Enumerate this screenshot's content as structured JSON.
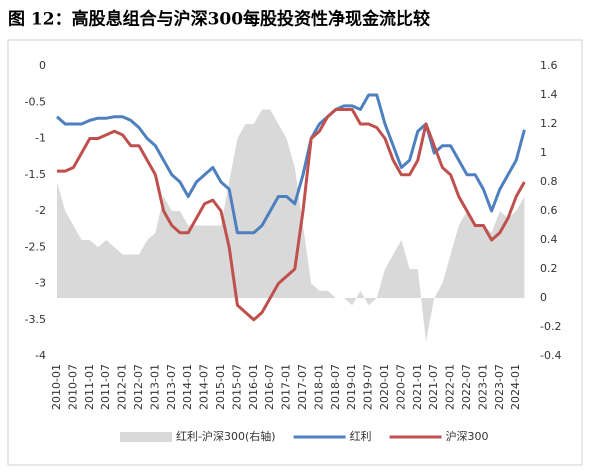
{
  "chart_data": {
    "type": "line",
    "title": "图 12：高股息组合与沪深300每股投资性净现金流比较",
    "categories": [
      "2010-01",
      null,
      "2010-07",
      null,
      "2011-01",
      null,
      "2011-07",
      null,
      "2012-01",
      null,
      "2012-07",
      null,
      "2013-01",
      null,
      "2013-07",
      null,
      "2014-01",
      null,
      "2014-07",
      null,
      "2015-01",
      null,
      "2015-07",
      null,
      "2016-01",
      null,
      "2016-07",
      null,
      "2017-01",
      null,
      "2017-07",
      null,
      "2018-01",
      null,
      "2018-07",
      null,
      "2019-01",
      null,
      "2019-07",
      null,
      "2020-01",
      null,
      "2020-07",
      null,
      "2021-01",
      null,
      "2021-07",
      null,
      "2022-01",
      null,
      "2022-07",
      null,
      "2023-01",
      null,
      "2023-07",
      null,
      "2024-01",
      null
    ],
    "series": [
      {
        "name": "红利-沪深300(右轴)",
        "color": "#d9d9d9",
        "axis": "y2",
        "kind": "area",
        "values": [
          0.8,
          0.6,
          0.5,
          0.4,
          0.4,
          0.35,
          0.4,
          0.35,
          0.3,
          0.3,
          0.3,
          0.4,
          0.45,
          0.7,
          0.6,
          0.6,
          0.5,
          0.5,
          0.5,
          0.5,
          0.5,
          0.8,
          1.1,
          1.2,
          1.2,
          1.3,
          1.3,
          1.2,
          1.1,
          0.9,
          0.5,
          0.1,
          0.05,
          0.05,
          0.0,
          0.0,
          -0.05,
          0.05,
          -0.05,
          0.0,
          0.2,
          0.3,
          0.4,
          0.2,
          0.2,
          -0.3,
          0.0,
          0.1,
          0.3,
          0.5,
          0.6,
          0.5,
          0.5,
          0.45,
          0.6,
          0.55,
          0.6,
          0.7
        ]
      },
      {
        "name": "红利",
        "color": "#4e7fbf",
        "values": [
          -0.7,
          -0.8,
          -0.8,
          -0.8,
          -0.75,
          -0.72,
          -0.72,
          -0.7,
          -0.7,
          -0.75,
          -0.85,
          -1.0,
          -1.1,
          -1.3,
          -1.5,
          -1.6,
          -1.8,
          -1.6,
          -1.5,
          -1.4,
          -1.6,
          -1.7,
          -2.3,
          -2.3,
          -2.3,
          -2.2,
          -2.0,
          -1.8,
          -1.8,
          -1.9,
          -1.5,
          -1.0,
          -0.8,
          -0.7,
          -0.6,
          -0.55,
          -0.55,
          -0.6,
          -0.4,
          -0.4,
          -0.8,
          -1.1,
          -1.4,
          -1.3,
          -0.9,
          -0.8,
          -1.2,
          -1.1,
          -1.1,
          -1.3,
          -1.5,
          -1.5,
          -1.7,
          -2.0,
          -1.7,
          -1.5,
          -1.3,
          -0.88
        ]
      },
      {
        "name": "沪深300",
        "color": "#c0504d",
        "values": [
          -1.45,
          -1.45,
          -1.4,
          -1.2,
          -1.0,
          -1.0,
          -0.95,
          -0.9,
          -0.95,
          -1.1,
          -1.1,
          -1.3,
          -1.5,
          -2.0,
          -2.2,
          -2.3,
          -2.3,
          -2.1,
          -1.9,
          -1.85,
          -2.0,
          -2.5,
          -3.3,
          -3.4,
          -3.5,
          -3.4,
          -3.2,
          -3.0,
          -2.9,
          -2.8,
          -2.0,
          -1.0,
          -0.9,
          -0.7,
          -0.6,
          -0.6,
          -0.6,
          -0.8,
          -0.8,
          -0.85,
          -1.0,
          -1.3,
          -1.5,
          -1.5,
          -1.3,
          -0.8,
          -1.1,
          -1.4,
          -1.5,
          -1.8,
          -2.0,
          -2.2,
          -2.2,
          -2.4,
          -2.3,
          -2.1,
          -1.8,
          -1.6
        ]
      }
    ],
    "ylim": [
      -4,
      0
    ],
    "yticks": [
      0,
      -0.5,
      -1,
      -1.5,
      -2,
      -2.5,
      -3,
      -3.5,
      -4
    ],
    "y2lim": [
      -0.4,
      1.6
    ],
    "y2ticks": [
      1.6,
      1.4,
      1.2,
      1,
      0.8,
      0.6,
      0.4,
      0.2,
      0,
      -0.2,
      -0.4
    ],
    "legend": "bottom"
  }
}
